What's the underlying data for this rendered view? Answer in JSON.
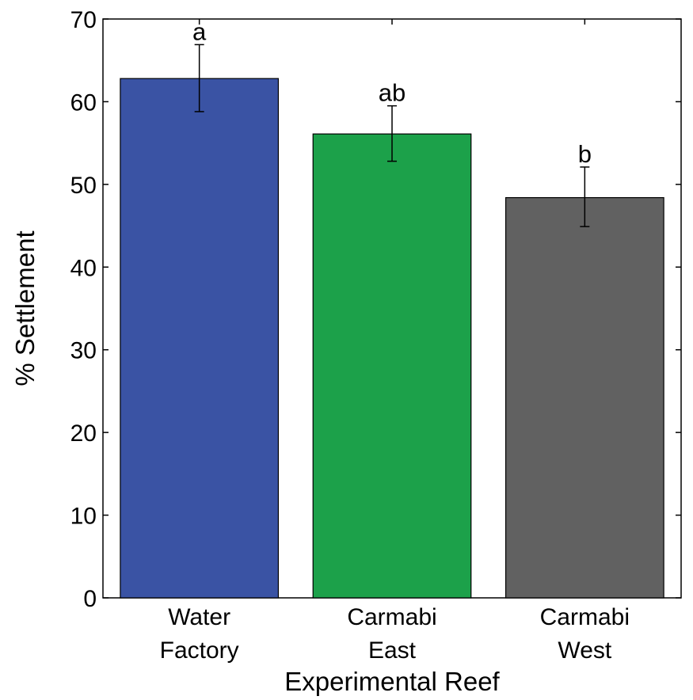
{
  "chart_data": {
    "type": "bar",
    "title": "",
    "xlabel": "Experimental Reef",
    "ylabel": "% Settlement",
    "ylim": [
      0,
      70
    ],
    "yticks": [
      0,
      10,
      20,
      30,
      40,
      50,
      60,
      70
    ],
    "grid": false,
    "legend": "none",
    "categories": [
      {
        "lines": [
          "Water",
          "Factory"
        ]
      },
      {
        "lines": [
          "Carmabi",
          "East"
        ]
      },
      {
        "lines": [
          "Carmabi",
          "West"
        ]
      }
    ],
    "values": [
      62.8,
      56.1,
      48.4
    ],
    "error_bars": [
      {
        "low": 58.8,
        "high": 66.9
      },
      {
        "low": 52.8,
        "high": 59.5
      },
      {
        "low": 44.9,
        "high": 52.1
      }
    ],
    "significance_labels": [
      "a",
      "ab",
      "b"
    ],
    "colors": [
      "#3a53a4",
      "#1ca14a",
      "#616161"
    ]
  }
}
